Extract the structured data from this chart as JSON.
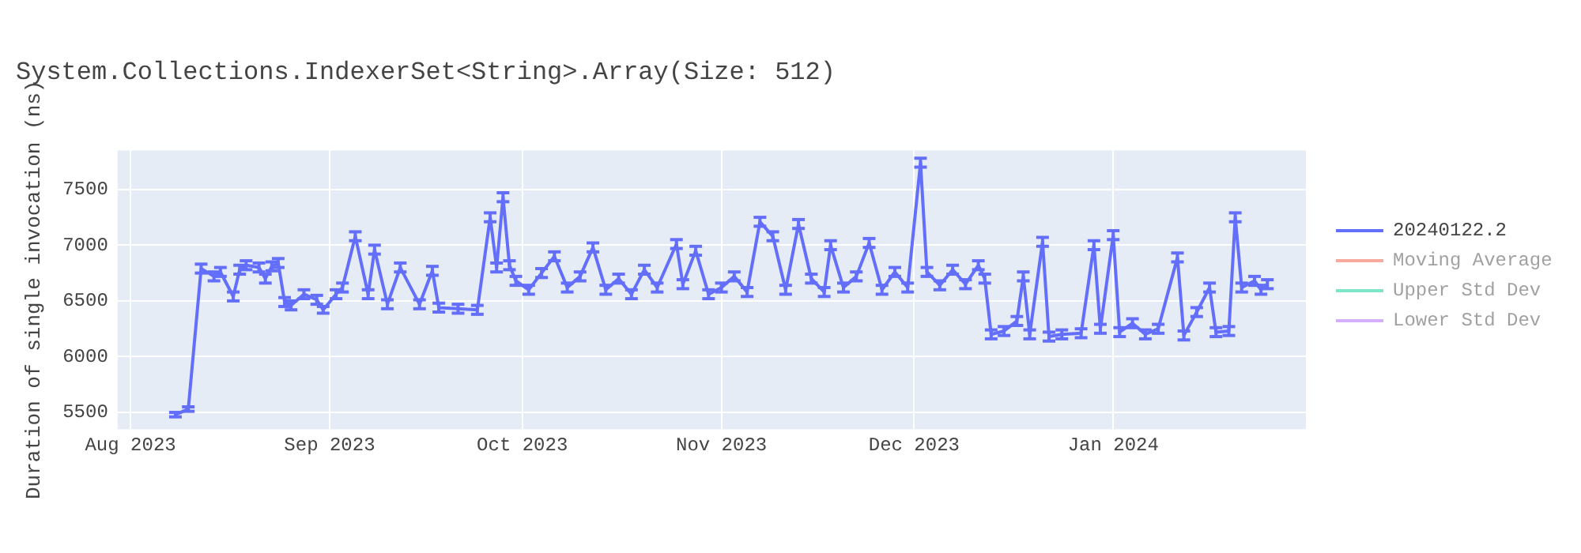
{
  "chart_data": {
    "type": "line",
    "title": "System.Collections.IndexerSet<String>.Array(Size: 512)",
    "ylabel": "Duration of single invocation (ns)",
    "x": [
      "2023-08-08",
      "2023-08-10",
      "2023-08-12",
      "2023-08-14",
      "2023-08-15",
      "2023-08-17",
      "2023-08-18",
      "2023-08-19",
      "2023-08-21",
      "2023-08-22",
      "2023-08-23",
      "2023-08-24",
      "2023-08-25",
      "2023-08-26",
      "2023-08-28",
      "2023-08-30",
      "2023-08-31",
      "2023-09-02",
      "2023-09-03",
      "2023-09-05",
      "2023-09-07",
      "2023-09-08",
      "2023-09-10",
      "2023-09-12",
      "2023-09-15",
      "2023-09-17",
      "2023-09-18",
      "2023-09-21",
      "2023-09-24",
      "2023-09-26",
      "2023-09-27",
      "2023-09-28",
      "2023-09-29",
      "2023-09-30",
      "2023-10-02",
      "2023-10-04",
      "2023-10-06",
      "2023-10-08",
      "2023-10-10",
      "2023-10-12",
      "2023-10-14",
      "2023-10-16",
      "2023-10-18",
      "2023-10-20",
      "2023-10-22",
      "2023-10-25",
      "2023-10-26",
      "2023-10-28",
      "2023-10-30",
      "2023-11-01",
      "2023-11-03",
      "2023-11-05",
      "2023-11-07",
      "2023-11-09",
      "2023-11-11",
      "2023-11-13",
      "2023-11-15",
      "2023-11-17",
      "2023-11-18",
      "2023-11-20",
      "2023-11-22",
      "2023-11-24",
      "2023-11-26",
      "2023-11-28",
      "2023-11-30",
      "2023-12-02",
      "2023-12-03",
      "2023-12-05",
      "2023-12-07",
      "2023-12-09",
      "2023-12-11",
      "2023-12-12",
      "2023-12-13",
      "2023-12-15",
      "2023-12-17",
      "2023-12-18",
      "2023-12-19",
      "2023-12-21",
      "2023-12-22",
      "2023-12-24",
      "2023-12-27",
      "2023-12-29",
      "2023-12-30",
      "2024-01-01",
      "2024-01-02",
      "2024-01-04",
      "2024-01-06",
      "2024-01-08",
      "2024-01-11",
      "2024-01-12",
      "2024-01-14",
      "2024-01-16",
      "2024-01-17",
      "2024-01-19",
      "2024-01-20",
      "2024-01-21",
      "2024-01-23",
      "2024-01-24",
      "2024-01-25"
    ],
    "series": [
      {
        "name": "20240122.2",
        "color": "#636efa",
        "values": [
          5480,
          5530,
          6790,
          6720,
          6760,
          6540,
          6780,
          6820,
          6800,
          6700,
          6810,
          6840,
          6490,
          6460,
          6560,
          6510,
          6420,
          6560,
          6620,
          7080,
          6560,
          6960,
          6470,
          6800,
          6470,
          6770,
          6440,
          6430,
          6420,
          7250,
          6800,
          7430,
          6820,
          6680,
          6600,
          6750,
          6900,
          6620,
          6720,
          6980,
          6600,
          6700,
          6560,
          6780,
          6620,
          7010,
          6650,
          6950,
          6560,
          6620,
          6720,
          6580,
          7210,
          7080,
          6600,
          7190,
          6700,
          6580,
          7000,
          6620,
          6720,
          7020,
          6600,
          6760,
          6620,
          7740,
          6760,
          6640,
          6780,
          6650,
          6820,
          6700,
          6200,
          6230,
          6320,
          6720,
          6200,
          7030,
          6180,
          6200,
          6210,
          7000,
          6250,
          7090,
          6220,
          6300,
          6200,
          6250,
          6890,
          6190,
          6400,
          6620,
          6220,
          6230,
          7250,
          6620,
          6680,
          6600,
          6650
        ],
        "errors": [
          20,
          20,
          40,
          40,
          40,
          40,
          40,
          40,
          40,
          40,
          40,
          40,
          40,
          40,
          40,
          40,
          30,
          40,
          40,
          40,
          40,
          40,
          40,
          40,
          40,
          40,
          40,
          40,
          40,
          40,
          40,
          40,
          40,
          40,
          40,
          40,
          40,
          40,
          40,
          40,
          40,
          40,
          40,
          40,
          40,
          40,
          40,
          40,
          40,
          40,
          40,
          40,
          40,
          40,
          40,
          40,
          40,
          40,
          40,
          40,
          40,
          40,
          40,
          40,
          40,
          40,
          40,
          40,
          40,
          40,
          40,
          40,
          40,
          40,
          40,
          40,
          40,
          40,
          40,
          40,
          40,
          40,
          40,
          40,
          40,
          40,
          40,
          40,
          40,
          40,
          40,
          40,
          40,
          40,
          40,
          40,
          40,
          40,
          40
        ]
      },
      {
        "name": "Moving Average",
        "color": "#ef553b",
        "values": [
          null,
          null,
          null,
          null,
          null,
          null,
          null,
          null,
          null,
          null,
          null,
          null,
          null,
          null,
          null,
          null,
          null,
          null,
          null,
          null,
          null,
          null,
          null,
          null,
          null,
          null,
          null,
          null,
          null,
          null,
          null,
          null,
          null,
          null,
          null,
          null,
          null,
          null,
          null,
          null,
          null,
          null,
          null,
          null,
          null,
          null,
          null,
          null,
          null,
          null,
          null,
          null,
          null,
          null,
          null,
          null,
          null,
          null,
          null,
          null,
          null,
          null,
          null,
          null,
          null,
          null,
          null,
          null,
          null,
          null,
          null,
          null,
          null,
          null,
          null,
          null,
          null,
          null,
          null,
          null,
          null,
          null,
          null,
          null,
          null,
          null,
          null,
          null,
          null,
          null,
          null,
          null,
          null,
          null,
          null,
          null,
          null,
          null,
          null
        ]
      },
      {
        "name": "Upper Std Dev",
        "color": "#00cc96",
        "values": [
          null,
          null,
          null,
          null,
          null,
          null,
          null,
          null,
          null,
          null,
          null,
          null,
          null,
          null,
          null,
          null,
          null,
          null,
          null,
          null,
          null,
          null,
          null,
          null,
          null,
          null,
          null,
          null,
          null,
          null,
          null,
          null,
          null,
          null,
          null,
          null,
          null,
          null,
          null,
          null,
          null,
          null,
          null,
          null,
          null,
          null,
          null,
          null,
          null,
          null,
          null,
          null,
          null,
          null,
          null,
          null,
          null,
          null,
          null,
          null,
          null,
          null,
          null,
          null,
          null,
          null,
          null,
          null,
          null,
          null,
          null,
          null,
          null,
          null,
          null,
          null,
          null,
          null,
          null,
          null,
          null,
          null,
          null,
          null,
          null,
          null,
          null,
          null,
          null,
          null,
          null,
          null,
          null,
          null,
          null,
          null,
          null,
          null,
          null
        ]
      },
      {
        "name": "Lower Std Dev",
        "color": "#ab63fa",
        "values": [
          null,
          null,
          null,
          null,
          null,
          null,
          null,
          null,
          null,
          null,
          null,
          null,
          null,
          null,
          null,
          null,
          null,
          null,
          null,
          null,
          null,
          null,
          null,
          null,
          null,
          null,
          null,
          null,
          null,
          null,
          null,
          null,
          null,
          null,
          null,
          null,
          null,
          null,
          null,
          null,
          null,
          null,
          null,
          null,
          null,
          null,
          null,
          null,
          null,
          null,
          null,
          null,
          null,
          null,
          null,
          null,
          null,
          null,
          null,
          null,
          null,
          null,
          null,
          null,
          null,
          null,
          null,
          null,
          null,
          null,
          null,
          null,
          null,
          null,
          null,
          null,
          null,
          null,
          null,
          null,
          null,
          null,
          null,
          null,
          null,
          null,
          null,
          null,
          null,
          null,
          null,
          null,
          null,
          null,
          null,
          null,
          null,
          null,
          null
        ]
      }
    ],
    "xlim": [
      "2023-07-30",
      "2024-01-31"
    ],
    "xticks": [
      {
        "value": "2023-08-01",
        "label": "Aug 2023"
      },
      {
        "value": "2023-09-01",
        "label": "Sep 2023"
      },
      {
        "value": "2023-10-01",
        "label": "Oct 2023"
      },
      {
        "value": "2023-11-01",
        "label": "Nov 2023"
      },
      {
        "value": "2023-12-01",
        "label": "Dec 2023"
      },
      {
        "value": "2024-01-01",
        "label": "Jan 2024"
      }
    ],
    "ylim": [
      5350,
      7850
    ],
    "yticks": [
      5500,
      6000,
      6500,
      7000,
      7500
    ],
    "grid": true,
    "legend": "top right",
    "marker": "none",
    "line_style": "solid"
  }
}
